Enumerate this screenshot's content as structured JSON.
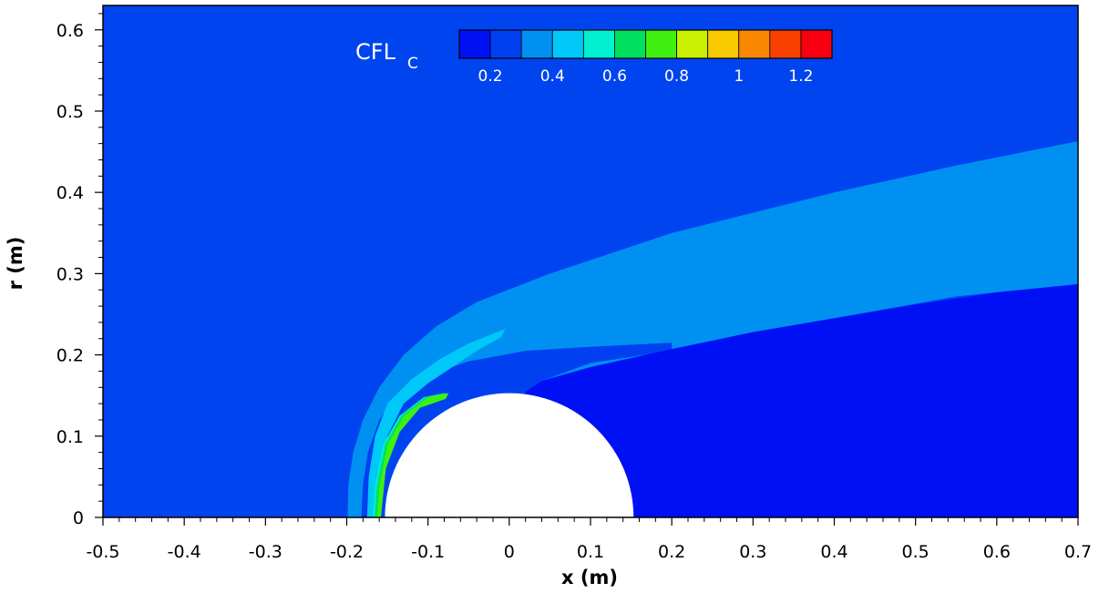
{
  "chart_data": {
    "type": "heatmap",
    "title": "",
    "xlabel": "x (m)",
    "ylabel": "r (m)",
    "xlim": [
      -0.5,
      0.7
    ],
    "ylim": [
      0,
      0.63
    ],
    "x_ticks": [
      -0.5,
      -0.4,
      -0.3,
      -0.2,
      -0.1,
      0,
      0.1,
      0.2,
      0.3,
      0.4,
      0.5,
      0.6,
      0.7
    ],
    "x_tick_labels": [
      "-0.5",
      "-0.4",
      "-0.3",
      "-0.2",
      "-0.1",
      "0",
      "0.1",
      "0.2",
      "0.3",
      "0.4",
      "0.5",
      "0.6",
      "0.7"
    ],
    "y_ticks": [
      0,
      0.1,
      0.2,
      0.3,
      0.4,
      0.5,
      0.6
    ],
    "y_tick_labels": [
      "0",
      "0.1",
      "0.2",
      "0.3",
      "0.4",
      "0.5",
      "0.6"
    ],
    "body": {
      "shape": "sphere",
      "center_x": 0,
      "radius": 0.153
    },
    "colorbar": {
      "title": "CFL",
      "title_subscript": "C",
      "placement": "top-center",
      "levels": [
        0.15,
        0.25,
        0.35,
        0.45,
        0.55,
        0.65,
        0.75,
        0.85,
        0.95,
        1.05,
        1.15,
        1.25
      ],
      "colors": [
        "#0010f5",
        "#0040f0",
        "#0090f2",
        "#00c8f8",
        "#00f0d0",
        "#00e060",
        "#40f010",
        "#c8f000",
        "#f8c800",
        "#f88800",
        "#f84000",
        "#f80010"
      ],
      "tick_values": [
        0.2,
        0.4,
        0.6,
        0.8,
        1,
        1.2
      ],
      "tick_labels": [
        "0.2",
        "0.4",
        "0.6",
        "0.8",
        "1",
        "1.2"
      ]
    },
    "background_level_color": "#0044f0",
    "wake_level_color": "#0010f5",
    "shock_layer_color": "#0090f2"
  }
}
